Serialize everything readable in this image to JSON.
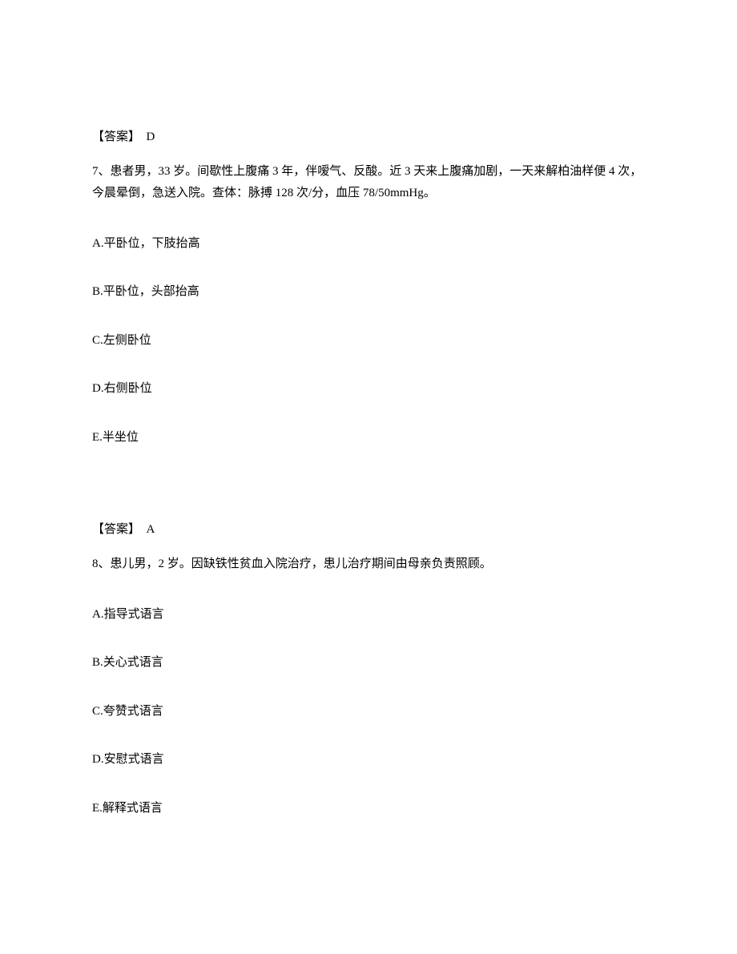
{
  "answer6": {
    "label": "【答案】",
    "value": "D"
  },
  "question7": {
    "number": "7、",
    "stem": "患者男，33 岁。间歇性上腹痛 3 年，伴嗳气、反酸。近 3 天来上腹痛加剧，一天来解柏油样便 4 次，今晨晕倒，急送入院。查体：脉搏 128 次/分，血压 78/50mmHg。",
    "options": {
      "A": "A.平卧位，下肢抬高",
      "B": "B.平卧位，头部抬高",
      "C": "C.左侧卧位",
      "D": "D.右侧卧位",
      "E": "E.半坐位"
    }
  },
  "answer7": {
    "label": "【答案】",
    "value": "A"
  },
  "question8": {
    "number": "8、",
    "stem": "患儿男，2 岁。因缺铁性贫血入院治疗，患儿治疗期间由母亲负责照顾。",
    "options": {
      "A": "A.指导式语言",
      "B": "B.关心式语言",
      "C": "C.夸赞式语言",
      "D": "D.安慰式语言",
      "E": "E.解释式语言"
    }
  }
}
